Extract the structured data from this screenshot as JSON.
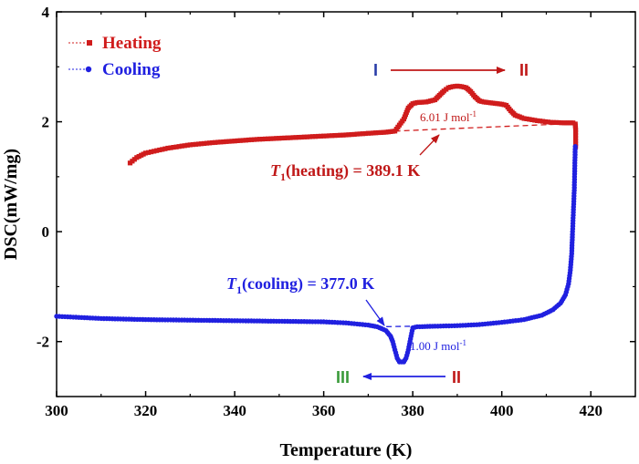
{
  "chart_data": {
    "type": "line",
    "xlabel": "Temperature (K)",
    "ylabel": "DSC(mW/mg)",
    "xlim": [
      300,
      430
    ],
    "ylim": [
      -3,
      4
    ],
    "xticks": [
      "300",
      "320",
      "340",
      "360",
      "380",
      "400",
      "420"
    ],
    "yticks": [
      "-2",
      "0",
      "2",
      "4"
    ],
    "legend_position": "top-left",
    "series": [
      {
        "name": "Heating",
        "color": "#d01c1c",
        "marker": "square",
        "points": [
          [
            316.5,
            1.25
          ],
          [
            318,
            1.35
          ],
          [
            320,
            1.43
          ],
          [
            325,
            1.52
          ],
          [
            330,
            1.58
          ],
          [
            335,
            1.62
          ],
          [
            340,
            1.65
          ],
          [
            345,
            1.68
          ],
          [
            350,
            1.7
          ],
          [
            355,
            1.72
          ],
          [
            360,
            1.74
          ],
          [
            365,
            1.76
          ],
          [
            370,
            1.79
          ],
          [
            374,
            1.81
          ],
          [
            376,
            1.83
          ],
          [
            378,
            2.05
          ],
          [
            379,
            2.25
          ],
          [
            380,
            2.33
          ],
          [
            381,
            2.35
          ],
          [
            383,
            2.36
          ],
          [
            385,
            2.4
          ],
          [
            386,
            2.48
          ],
          [
            387,
            2.56
          ],
          [
            388,
            2.62
          ],
          [
            389,
            2.64
          ],
          [
            390,
            2.65
          ],
          [
            391,
            2.64
          ],
          [
            392,
            2.62
          ],
          [
            393,
            2.55
          ],
          [
            394,
            2.45
          ],
          [
            395,
            2.38
          ],
          [
            396,
            2.36
          ],
          [
            398,
            2.34
          ],
          [
            400,
            2.32
          ],
          [
            401,
            2.3
          ],
          [
            402,
            2.2
          ],
          [
            403,
            2.12
          ],
          [
            405,
            2.06
          ],
          [
            408,
            2.02
          ],
          [
            411,
            1.99
          ],
          [
            414,
            1.98
          ],
          [
            416,
            1.98
          ],
          [
            416.5,
            1.96
          ],
          [
            416.6,
            1.85
          ],
          [
            416.6,
            1.7
          ],
          [
            416.6,
            1.55
          ]
        ]
      },
      {
        "name": "Cooling",
        "color": "#2020e0",
        "marker": "circle",
        "points": [
          [
            416.5,
            1.55
          ],
          [
            416.4,
            1.2
          ],
          [
            416.3,
            0.8
          ],
          [
            416.1,
            0.4
          ],
          [
            415.9,
            0.0
          ],
          [
            415.7,
            -0.4
          ],
          [
            415.4,
            -0.7
          ],
          [
            415.0,
            -0.95
          ],
          [
            414.3,
            -1.15
          ],
          [
            413.2,
            -1.3
          ],
          [
            411.5,
            -1.42
          ],
          [
            409,
            -1.52
          ],
          [
            405,
            -1.6
          ],
          [
            400,
            -1.65
          ],
          [
            395,
            -1.69
          ],
          [
            390,
            -1.71
          ],
          [
            385,
            -1.72
          ],
          [
            381,
            -1.73
          ],
          [
            380,
            -1.75
          ],
          [
            379.5,
            -1.95
          ],
          [
            379,
            -2.15
          ],
          [
            378.5,
            -2.3
          ],
          [
            378,
            -2.37
          ],
          [
            377,
            -2.37
          ],
          [
            376.5,
            -2.3
          ],
          [
            376,
            -2.15
          ],
          [
            375.5,
            -2.0
          ],
          [
            375,
            -1.9
          ],
          [
            374,
            -1.8
          ],
          [
            372,
            -1.73
          ],
          [
            370,
            -1.7
          ],
          [
            365,
            -1.66
          ],
          [
            360,
            -1.64
          ],
          [
            350,
            -1.63
          ],
          [
            340,
            -1.62
          ],
          [
            330,
            -1.61
          ],
          [
            320,
            -1.6
          ],
          [
            310,
            -1.58
          ],
          [
            305,
            -1.56
          ],
          [
            300,
            -1.54
          ]
        ]
      }
    ],
    "baselines": [
      {
        "from": [
          376,
          1.83
        ],
        "to": [
          416.5,
          1.97
        ],
        "color": "#d01c1c"
      },
      {
        "from": [
          372,
          -1.73
        ],
        "to": [
          381,
          -1.72
        ],
        "color": "#2020e0"
      }
    ],
    "annotations": {
      "heating": {
        "prefix": "T",
        "sub": "1",
        "text": "(heating) = 389.1 K",
        "enthalpy": "6.01 J mol",
        "enthalpy_sup": "-1",
        "color": "#c01818"
      },
      "cooling": {
        "prefix": "T",
        "sub": "1",
        "text": "(cooling) = 377.0 K",
        "enthalpy": "1.00 J mol",
        "enthalpy_sup": "-1",
        "color": "#2020e0"
      },
      "phases": {
        "I": "I",
        "II_top": "II",
        "III": "III",
        "II_bottom": "II"
      },
      "phase_colors": {
        "I": "#2a3ea8",
        "II": "#c01818",
        "III": "#3a9a3a"
      }
    }
  }
}
